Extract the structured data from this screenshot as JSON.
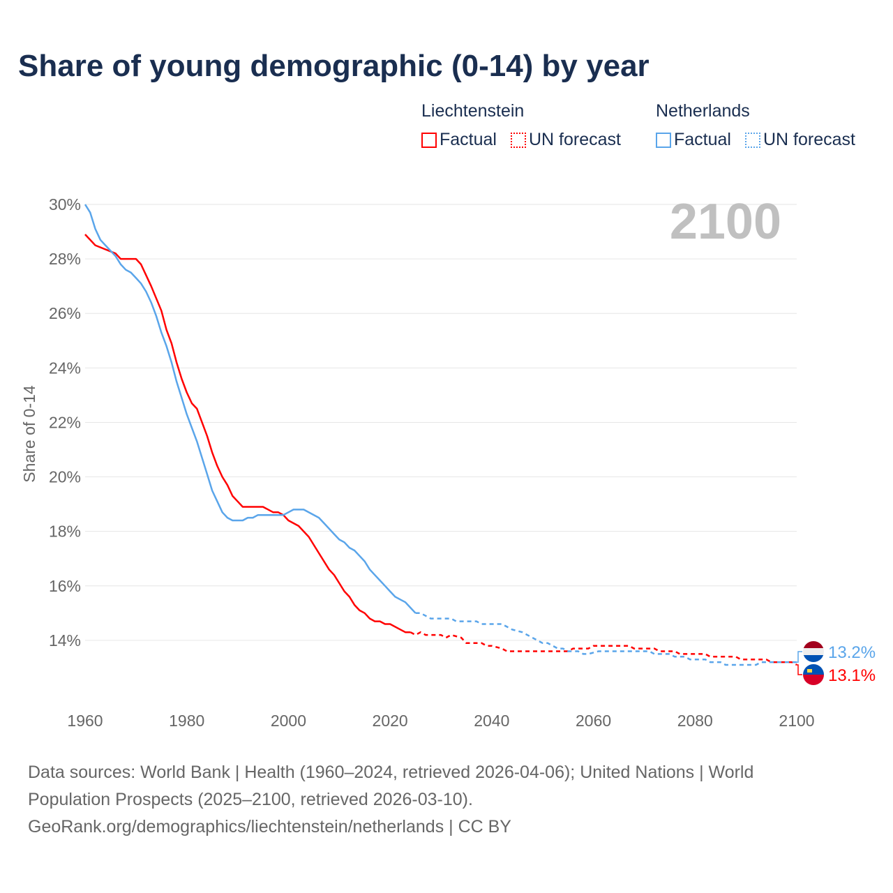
{
  "title": "Share of young demographic (0-14) by year",
  "legend": {
    "groups": [
      {
        "name": "Liechtenstein",
        "factual": "Factual",
        "forecast": "UN forecast",
        "color": "#ff0000"
      },
      {
        "name": "Netherlands",
        "factual": "Factual",
        "forecast": "UN forecast",
        "color": "#5aa5ea"
      }
    ]
  },
  "year_indicator": "2100",
  "footer": {
    "line1": "Data sources: World Bank | Health (1960–2024, retrieved 2026-04-06); United Nations | World",
    "line2": "Population Prospects (2025–2100, retrieved 2026-03-10).",
    "line3": "GeoRank.org/demographics/liechtenstein/netherlands | CC BY"
  },
  "chart_data": {
    "type": "line",
    "title": "Share of young demographic (0-14) by year",
    "xlabel": "",
    "ylabel": "Share of 0-14",
    "xlim": [
      1960,
      2100
    ],
    "ylim": [
      12,
      30
    ],
    "xticks": [
      1960,
      1980,
      2000,
      2020,
      2040,
      2060,
      2080,
      2100
    ],
    "xtick_labels": [
      "1960",
      "1980",
      "2000",
      "2020",
      "2040",
      "2060",
      "2080",
      "2100"
    ],
    "yticks": [
      14,
      16,
      18,
      20,
      22,
      24,
      26,
      28,
      30
    ],
    "ytick_labels": [
      "14%",
      "16%",
      "18%",
      "20%",
      "22%",
      "24%",
      "26%",
      "28%",
      "30%"
    ],
    "grid": true,
    "legend_position": "top-right",
    "series": [
      {
        "name": "Liechtenstein",
        "color": "#ff0000",
        "end_label": "13.1%",
        "flag": "liechtenstein-flag",
        "factual": [
          [
            1960,
            28.9
          ],
          [
            1962,
            28.5
          ],
          [
            1966,
            28.2
          ],
          [
            1967,
            28.0
          ],
          [
            1970,
            28.0
          ],
          [
            1971,
            27.8
          ],
          [
            1973,
            27.0
          ],
          [
            1975,
            26.1
          ],
          [
            1976,
            25.4
          ],
          [
            1977,
            24.9
          ],
          [
            1978,
            24.2
          ],
          [
            1979,
            23.6
          ],
          [
            1980,
            23.1
          ],
          [
            1981,
            22.7
          ],
          [
            1982,
            22.5
          ],
          [
            1983,
            22.0
          ],
          [
            1984,
            21.5
          ],
          [
            1985,
            20.9
          ],
          [
            1986,
            20.4
          ],
          [
            1987,
            20.0
          ],
          [
            1988,
            19.7
          ],
          [
            1989,
            19.3
          ],
          [
            1990,
            19.1
          ],
          [
            1991,
            18.9
          ],
          [
            1995,
            18.9
          ],
          [
            1997,
            18.7
          ],
          [
            1998,
            18.7
          ],
          [
            1999,
            18.6
          ],
          [
            2000,
            18.4
          ],
          [
            2002,
            18.2
          ],
          [
            2004,
            17.8
          ],
          [
            2006,
            17.2
          ],
          [
            2008,
            16.6
          ],
          [
            2009,
            16.4
          ],
          [
            2010,
            16.1
          ],
          [
            2011,
            15.8
          ],
          [
            2012,
            15.6
          ],
          [
            2013,
            15.3
          ],
          [
            2014,
            15.1
          ],
          [
            2015,
            15.0
          ],
          [
            2016,
            14.8
          ],
          [
            2017,
            14.7
          ],
          [
            2018,
            14.7
          ],
          [
            2019,
            14.6
          ],
          [
            2020,
            14.6
          ],
          [
            2022,
            14.4
          ],
          [
            2023,
            14.3
          ],
          [
            2024,
            14.3
          ]
        ],
        "forecast": [
          [
            2024,
            14.3
          ],
          [
            2025,
            14.2
          ],
          [
            2026,
            14.3
          ],
          [
            2027,
            14.2
          ],
          [
            2030,
            14.2
          ],
          [
            2031,
            14.1
          ],
          [
            2032,
            14.2
          ],
          [
            2034,
            14.1
          ],
          [
            2035,
            13.9
          ],
          [
            2038,
            13.9
          ],
          [
            2039,
            13.8
          ],
          [
            2040,
            13.8
          ],
          [
            2042,
            13.7
          ],
          [
            2043,
            13.6
          ],
          [
            2055,
            13.6
          ],
          [
            2056,
            13.7
          ],
          [
            2059,
            13.7
          ],
          [
            2060,
            13.8
          ],
          [
            2067,
            13.8
          ],
          [
            2068,
            13.7
          ],
          [
            2072,
            13.7
          ],
          [
            2073,
            13.6
          ],
          [
            2076,
            13.6
          ],
          [
            2077,
            13.5
          ],
          [
            2082,
            13.5
          ],
          [
            2083,
            13.4
          ],
          [
            2088,
            13.4
          ],
          [
            2089,
            13.3
          ],
          [
            2094,
            13.3
          ],
          [
            2095,
            13.2
          ],
          [
            2099,
            13.2
          ],
          [
            2100,
            13.1
          ]
        ]
      },
      {
        "name": "Netherlands",
        "color": "#5aa5ea",
        "end_label": "13.2%",
        "flag": "netherlands-flag",
        "factual": [
          [
            1960,
            30.0
          ],
          [
            1961,
            29.7
          ],
          [
            1962,
            29.1
          ],
          [
            1963,
            28.7
          ],
          [
            1964,
            28.5
          ],
          [
            1965,
            28.3
          ],
          [
            1966,
            28.1
          ],
          [
            1967,
            27.8
          ],
          [
            1968,
            27.6
          ],
          [
            1969,
            27.5
          ],
          [
            1970,
            27.3
          ],
          [
            1971,
            27.1
          ],
          [
            1972,
            26.8
          ],
          [
            1973,
            26.4
          ],
          [
            1974,
            25.9
          ],
          [
            1975,
            25.3
          ],
          [
            1976,
            24.8
          ],
          [
            1977,
            24.2
          ],
          [
            1978,
            23.5
          ],
          [
            1979,
            22.9
          ],
          [
            1980,
            22.3
          ],
          [
            1981,
            21.8
          ],
          [
            1982,
            21.3
          ],
          [
            1983,
            20.7
          ],
          [
            1984,
            20.1
          ],
          [
            1985,
            19.5
          ],
          [
            1986,
            19.1
          ],
          [
            1987,
            18.7
          ],
          [
            1988,
            18.5
          ],
          [
            1989,
            18.4
          ],
          [
            1991,
            18.4
          ],
          [
            1992,
            18.5
          ],
          [
            1993,
            18.5
          ],
          [
            1994,
            18.6
          ],
          [
            1999,
            18.6
          ],
          [
            2000,
            18.7
          ],
          [
            2001,
            18.8
          ],
          [
            2003,
            18.8
          ],
          [
            2006,
            18.5
          ],
          [
            2007,
            18.3
          ],
          [
            2009,
            17.9
          ],
          [
            2010,
            17.7
          ],
          [
            2011,
            17.6
          ],
          [
            2012,
            17.4
          ],
          [
            2013,
            17.3
          ],
          [
            2014,
            17.1
          ],
          [
            2015,
            16.9
          ],
          [
            2016,
            16.6
          ],
          [
            2017,
            16.4
          ],
          [
            2018,
            16.2
          ],
          [
            2019,
            16.0
          ],
          [
            2020,
            15.8
          ],
          [
            2021,
            15.6
          ],
          [
            2022,
            15.5
          ],
          [
            2023,
            15.4
          ],
          [
            2024,
            15.2
          ],
          [
            2025,
            15.0
          ]
        ],
        "forecast": [
          [
            2025,
            15.0
          ],
          [
            2026,
            15.0
          ],
          [
            2027,
            14.9
          ],
          [
            2028,
            14.8
          ],
          [
            2032,
            14.8
          ],
          [
            2033,
            14.7
          ],
          [
            2037,
            14.7
          ],
          [
            2038,
            14.6
          ],
          [
            2042,
            14.6
          ],
          [
            2043,
            14.5
          ],
          [
            2044,
            14.4
          ],
          [
            2046,
            14.3
          ],
          [
            2048,
            14.1
          ],
          [
            2049,
            14.0
          ],
          [
            2050,
            13.9
          ],
          [
            2051,
            13.9
          ],
          [
            2052,
            13.8
          ],
          [
            2053,
            13.7
          ],
          [
            2054,
            13.7
          ],
          [
            2055,
            13.6
          ],
          [
            2057,
            13.6
          ],
          [
            2058,
            13.5
          ],
          [
            2059,
            13.5
          ],
          [
            2061,
            13.6
          ],
          [
            2071,
            13.6
          ],
          [
            2072,
            13.5
          ],
          [
            2075,
            13.5
          ],
          [
            2076,
            13.4
          ],
          [
            2078,
            13.4
          ],
          [
            2079,
            13.3
          ],
          [
            2082,
            13.3
          ],
          [
            2083,
            13.2
          ],
          [
            2085,
            13.2
          ],
          [
            2086,
            13.1
          ],
          [
            2092,
            13.1
          ],
          [
            2093,
            13.2
          ],
          [
            2100,
            13.2
          ]
        ]
      }
    ]
  }
}
